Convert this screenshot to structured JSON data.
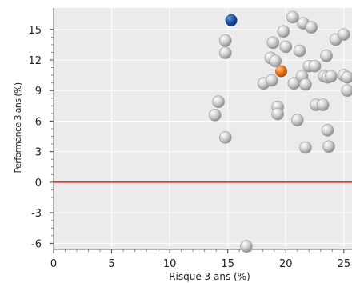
{
  "chart_data": {
    "type": "scatter",
    "xlabel": "Risque 3 ans (%)",
    "ylabel": "Performance 3 ans (%)",
    "xlim": [
      0,
      25.7
    ],
    "ylim": [
      -6.6,
      17.1
    ],
    "x_ticks": [
      0,
      5,
      10,
      15,
      20,
      25
    ],
    "y_ticks": [
      -6,
      -3,
      0,
      3,
      6,
      9,
      12,
      15
    ],
    "grid": true,
    "reference_line": {
      "y": 0,
      "color": "#e02020"
    },
    "series": [
      {
        "role": "peers",
        "color": "#c4c4c4",
        "points": [
          {
            "x": 14.8,
            "y": 13.9
          },
          {
            "x": 14.8,
            "y": 12.7
          },
          {
            "x": 14.2,
            "y": 7.9
          },
          {
            "x": 13.9,
            "y": 6.6
          },
          {
            "x": 14.8,
            "y": 4.4
          },
          {
            "x": 16.6,
            "y": -6.3
          },
          {
            "x": 18.1,
            "y": 9.7
          },
          {
            "x": 18.7,
            "y": 12.2
          },
          {
            "x": 18.8,
            "y": 10.0
          },
          {
            "x": 18.9,
            "y": 13.7
          },
          {
            "x": 19.1,
            "y": 11.9
          },
          {
            "x": 19.3,
            "y": 7.4
          },
          {
            "x": 19.3,
            "y": 6.7
          },
          {
            "x": 19.8,
            "y": 14.8
          },
          {
            "x": 20.0,
            "y": 13.3
          },
          {
            "x": 20.6,
            "y": 16.2
          },
          {
            "x": 20.7,
            "y": 9.7
          },
          {
            "x": 21.0,
            "y": 6.1
          },
          {
            "x": 21.2,
            "y": 12.9
          },
          {
            "x": 21.4,
            "y": 10.4
          },
          {
            "x": 21.5,
            "y": 15.6
          },
          {
            "x": 21.7,
            "y": 9.6
          },
          {
            "x": 21.7,
            "y": 3.4
          },
          {
            "x": 22.0,
            "y": 11.4
          },
          {
            "x": 22.2,
            "y": 15.2
          },
          {
            "x": 22.5,
            "y": 11.4
          },
          {
            "x": 22.6,
            "y": 7.6
          },
          {
            "x": 23.2,
            "y": 7.6
          },
          {
            "x": 23.3,
            "y": 10.4
          },
          {
            "x": 23.5,
            "y": 12.4
          },
          {
            "x": 23.6,
            "y": 10.3
          },
          {
            "x": 23.6,
            "y": 5.1
          },
          {
            "x": 23.7,
            "y": 3.5
          },
          {
            "x": 23.9,
            "y": 10.4
          },
          {
            "x": 24.3,
            "y": 14.0
          },
          {
            "x": 25.0,
            "y": 14.5
          },
          {
            "x": 25.0,
            "y": 10.5
          },
          {
            "x": 25.3,
            "y": 10.3
          },
          {
            "x": 25.3,
            "y": 9.0
          }
        ]
      },
      {
        "role": "highlight",
        "color": "#1c55a6",
        "points": [
          {
            "x": 15.3,
            "y": 15.9
          }
        ]
      },
      {
        "role": "category-average",
        "color": "#e3761f",
        "points": [
          {
            "x": 19.6,
            "y": 10.9
          }
        ]
      }
    ]
  }
}
